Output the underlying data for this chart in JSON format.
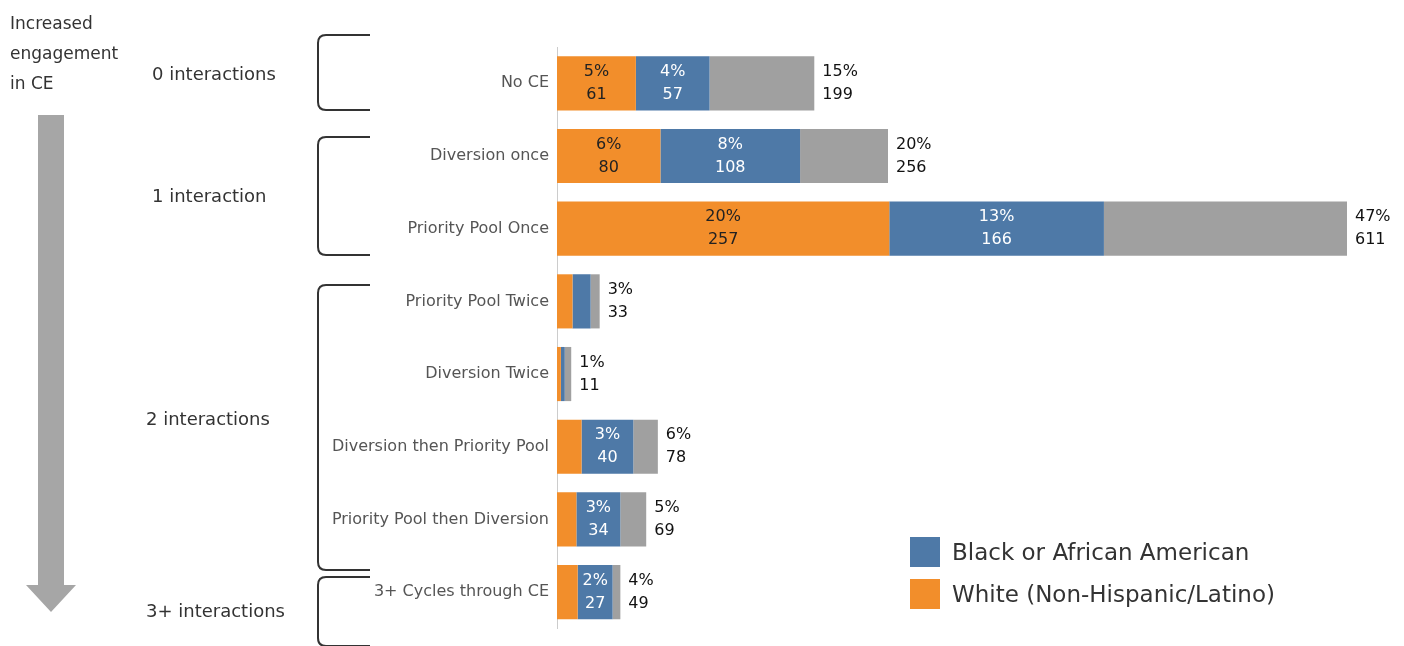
{
  "chart_data": {
    "type": "bar",
    "orientation": "horizontal",
    "stacked": true,
    "categories": [
      "No CE",
      "Diversion once",
      "Priority Pool Once",
      "Priority Pool Twice",
      "Diversion Twice",
      "Diversion then Priority Pool",
      "Priority Pool then Diversion",
      "3+ Cycles through CE"
    ],
    "series": [
      {
        "name": "White (Non-Hispanic/Latino)",
        "color": "#f28e2b",
        "values": [
          61,
          80,
          257,
          12,
          3,
          19,
          15,
          16
        ],
        "value_labels": [
          "5%\n61",
          "6%\n80",
          "20%\n257",
          null,
          null,
          null,
          null,
          null
        ]
      },
      {
        "name": "Black or African American",
        "color": "#4e79a7",
        "values": [
          57,
          108,
          166,
          14,
          3,
          40,
          34,
          27
        ],
        "value_labels": [
          "4%\n57",
          "8%\n108",
          "13%\n166",
          null,
          null,
          "3%\n40",
          "3%\n34",
          "2%\n27"
        ]
      },
      {
        "color": "#a0a0a0",
        "values": [
          81,
          68,
          188,
          7,
          5,
          19,
          20,
          6
        ]
      }
    ],
    "totals": [
      "15%\n199",
      "20%\n256",
      "47%\n611",
      "3%\n33",
      "1%\n11",
      "6%\n78",
      "5%\n69",
      "4%\n49"
    ],
    "legend": "bottom right",
    "annotations": [
      "Increased engagement in CE",
      "0 interactions",
      "1 interaction",
      "2 interactions",
      "3+ interactions"
    ]
  }
}
